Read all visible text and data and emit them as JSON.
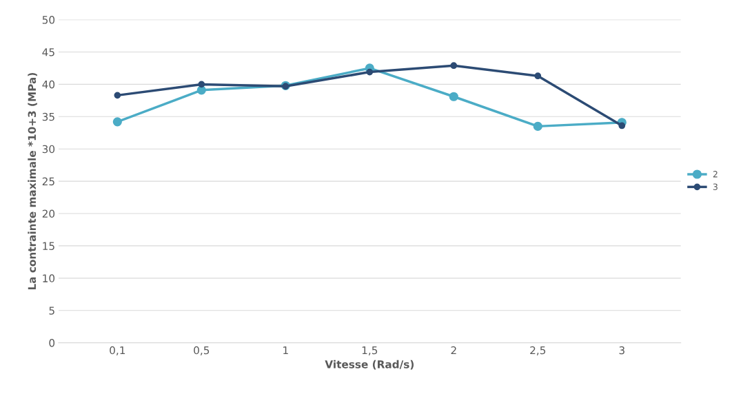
{
  "chart_data": {
    "type": "line",
    "xlabel": "Vitesse (Rad/s)",
    "ylabel": "La contrainte maximale *10+3 (MPa)",
    "categories": [
      "0,1",
      "0,5",
      "1",
      "1,5",
      "2",
      "2,5",
      "3"
    ],
    "series": [
      {
        "name": "2",
        "color": "#4bacc6",
        "values": [
          34.2,
          39.1,
          39.8,
          42.5,
          38.1,
          33.5,
          34.1
        ]
      },
      {
        "name": "3",
        "color": "#2c4b74",
        "values": [
          38.3,
          40.0,
          39.7,
          41.9,
          42.9,
          41.3,
          33.6
        ]
      }
    ],
    "ylim": [
      0,
      50
    ],
    "yticks": [
      0,
      5,
      10,
      15,
      20,
      25,
      30,
      35,
      40,
      45,
      50
    ],
    "grid": "y",
    "legend": "right",
    "marker": "circle",
    "line_style": "solid"
  }
}
